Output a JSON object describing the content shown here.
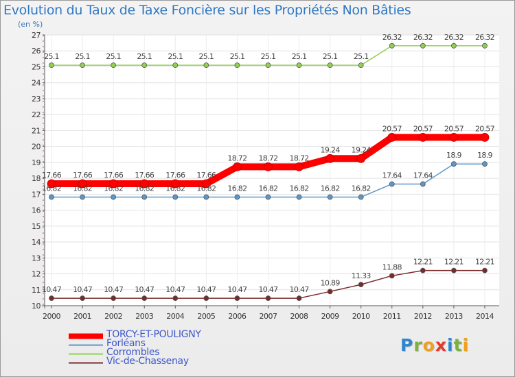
{
  "title": "Evolution du Taux de Taxe Foncière sur les Propriétés Non Bâties",
  "subtitle": "(en %)",
  "logo": {
    "letters": [
      "P",
      "r",
      "o",
      "x",
      "i",
      "t",
      "i"
    ],
    "colors": [
      "#2e86d0",
      "#7ab33a",
      "#f0a020",
      "#e23a2a",
      "#2e86d0",
      "#7ab33a",
      "#f0a020"
    ]
  },
  "chart_data": {
    "type": "line",
    "title": "Evolution du Taux de Taxe Foncière sur les Propriétés Non Bâties",
    "ylabel": "(en %)",
    "xlabel": "",
    "x": [
      "2000",
      "2001",
      "2002",
      "2003",
      "2004",
      "2005",
      "2006",
      "2007",
      "2008",
      "2009",
      "2010",
      "2011",
      "2012",
      "2013",
      "2014"
    ],
    "ylim": [
      10,
      27
    ],
    "yticks": [
      "10",
      "11",
      "12",
      "13",
      "14",
      "15",
      "16",
      "17",
      "18",
      "19",
      "20",
      "21",
      "22",
      "23",
      "24",
      "25",
      "26",
      "27"
    ],
    "grid": true,
    "legend_position": "bottom-left",
    "series": [
      {
        "name": "TORCY-ET-POULIGNY",
        "color": "#ff0000",
        "values": [
          17.66,
          17.66,
          17.66,
          17.66,
          17.66,
          17.66,
          18.72,
          18.72,
          18.72,
          19.24,
          19.24,
          20.57,
          20.57,
          20.57,
          20.57
        ],
        "labels": [
          "17.66",
          "17.66",
          "17.66",
          "17.66",
          "17.66",
          "17.66",
          "18.72",
          "18.72",
          "18.72",
          "19.24",
          "19.24",
          "20.57",
          "20.57",
          "20.57",
          "20.57"
        ]
      },
      {
        "name": "Forléans",
        "color": "#5b97c9",
        "values": [
          16.82,
          16.82,
          16.82,
          16.82,
          16.82,
          16.82,
          16.82,
          16.82,
          16.82,
          16.82,
          16.82,
          17.64,
          17.64,
          18.9,
          18.9
        ],
        "labels": [
          "16.82",
          "16.82",
          "16.82",
          "16.82",
          "16.82",
          "16.82",
          "16.82",
          "16.82",
          "16.82",
          "16.82",
          "16.82",
          "17.64",
          "17.64",
          "18.9",
          "18.9"
        ]
      },
      {
        "name": "Corrombles",
        "color": "#92d050",
        "values": [
          25.1,
          25.1,
          25.1,
          25.1,
          25.1,
          25.1,
          25.1,
          25.1,
          25.1,
          25.1,
          25.1,
          26.32,
          26.32,
          26.32,
          26.32
        ],
        "labels": [
          "25.1",
          "25.1",
          "25.1",
          "25.1",
          "25.1",
          "25.1",
          "25.1",
          "25.1",
          "25.1",
          "25.1",
          "25.1",
          "26.32",
          "26.32",
          "26.32",
          "26.32"
        ]
      },
      {
        "name": "Vic-de-Chassenay",
        "color": "#7a2a2a",
        "values": [
          10.47,
          10.47,
          10.47,
          10.47,
          10.47,
          10.47,
          10.47,
          10.47,
          10.47,
          10.89,
          11.33,
          11.88,
          12.21,
          12.21,
          12.21
        ],
        "labels": [
          "10.47",
          "10.47",
          "10.47",
          "10.47",
          "10.47",
          "10.47",
          "10.47",
          "10.47",
          "10.47",
          "10.89",
          "11.33",
          "11.88",
          "12.21",
          "12.21",
          "12.21"
        ]
      }
    ]
  }
}
